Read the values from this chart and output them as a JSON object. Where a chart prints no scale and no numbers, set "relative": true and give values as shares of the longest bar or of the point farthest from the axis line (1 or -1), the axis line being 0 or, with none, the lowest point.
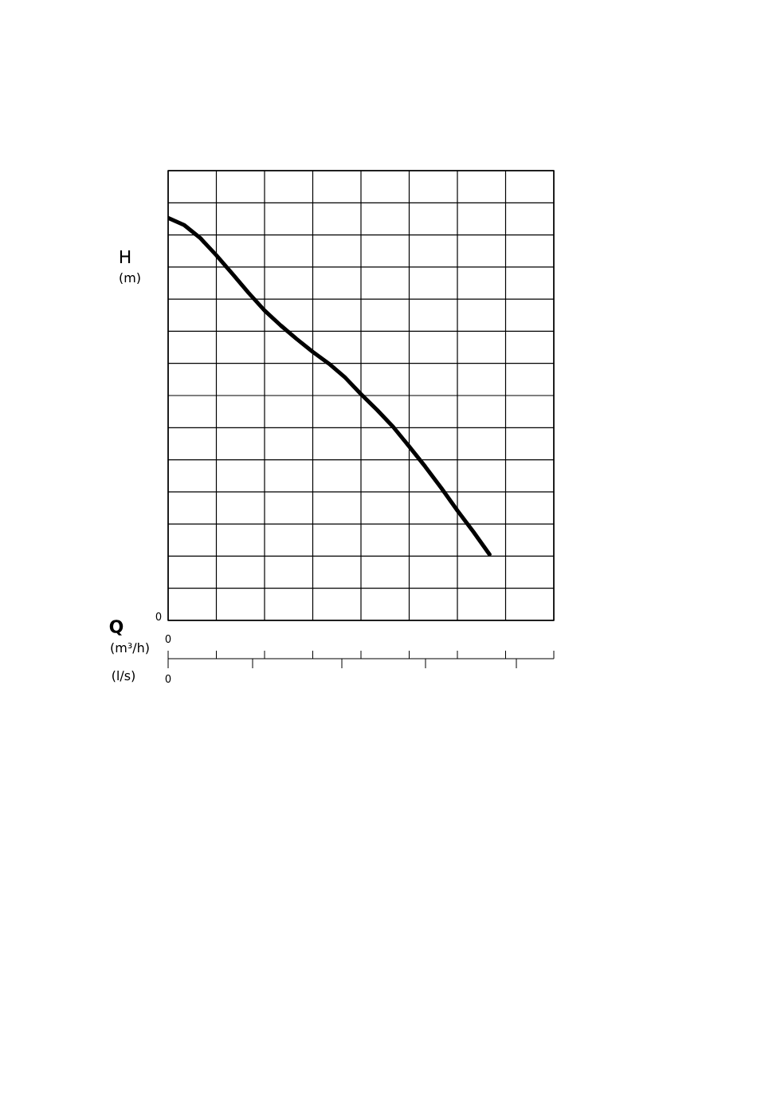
{
  "chart_data": {
    "type": "line",
    "relative": true,
    "xlabel": "Q",
    "ylabel": "H",
    "annotations": [
      "(m)",
      "(m³/h)",
      "(l/s)",
      "0",
      "0",
      "0"
    ],
    "categories": [
      null,
      null,
      null,
      null,
      null,
      null,
      null,
      null,
      null,
      null,
      null,
      null,
      null,
      null,
      null,
      null,
      null,
      null,
      null,
      null,
      null,
      null,
      null,
      null,
      null
    ],
    "series": [
      {
        "color": "#000000",
        "values": [
          1.0,
          0.982,
          0.95,
          0.907,
          0.861,
          0.814,
          0.77,
          0.733,
          0.699,
          0.667,
          0.638,
          0.604,
          0.562,
          0.523,
          0.481,
          0.432,
          0.382,
          0.329,
          0.273,
          0.22,
          0.164,
          null,
          null,
          null,
          null
        ]
      }
    ],
    "grid": true,
    "tick_labels": false
  }
}
